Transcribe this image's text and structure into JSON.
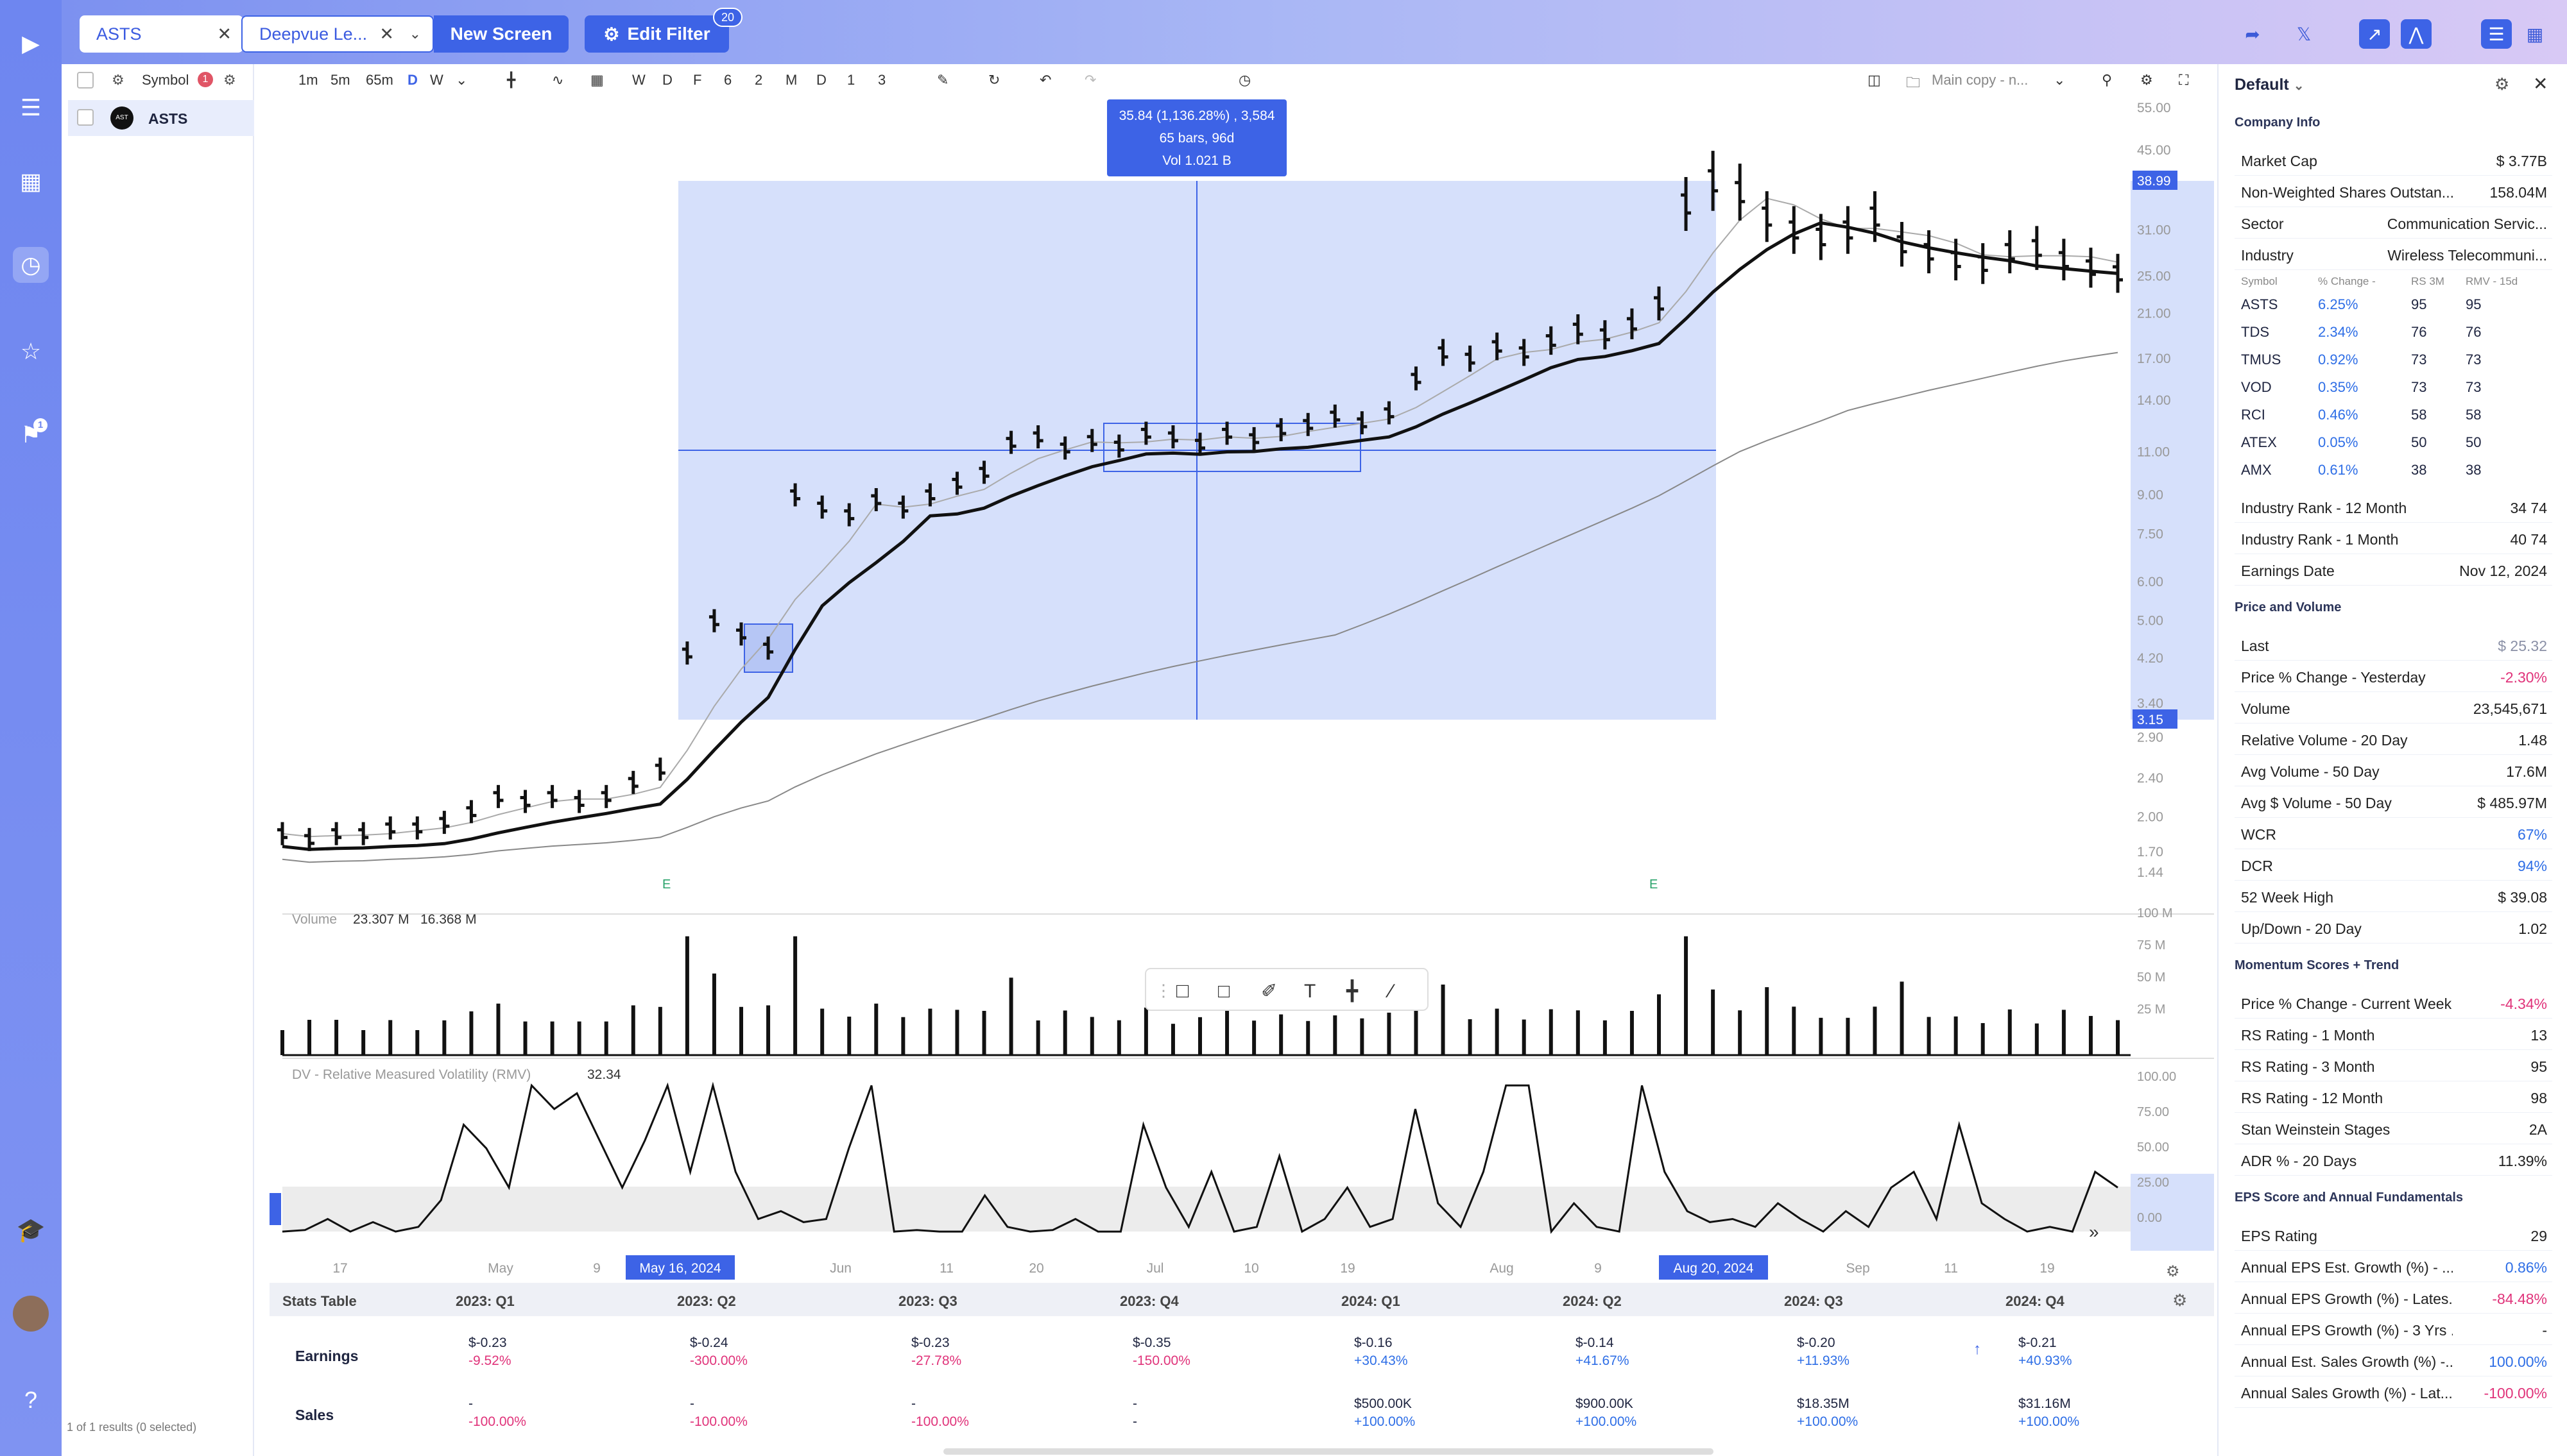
{
  "tabs": [
    {
      "label": "ASTS"
    },
    {
      "label": "Deepvue Le..."
    }
  ],
  "buttons": {
    "new_screen": "New Screen",
    "edit_filter": "Edit Filter",
    "filter_count": "20"
  },
  "rail_badge": "1",
  "watchlist": {
    "header": "Symbol",
    "header_badge": "1",
    "items": [
      {
        "symbol": "ASTS",
        "logo": "AST"
      }
    ],
    "footer": "1 of 1 results (0 selected)"
  },
  "chart_toolbar": {
    "timeframes": [
      "1m",
      "5m",
      "65m",
      "D",
      "W"
    ],
    "ranges": [
      "W",
      "D",
      "F",
      "6",
      "2",
      "M",
      "D",
      "1",
      "3"
    ],
    "layout_label": "Main copy - n..."
  },
  "chart_data": [
    {
      "type": "bar",
      "title": "ASTS",
      "x_axis_labels": [
        "17",
        "May",
        "9",
        "May 16, 2024",
        "Jun",
        "11",
        "20",
        "Jul",
        "10",
        "19",
        "Aug",
        "9",
        "Aug 20, 2024",
        "Sep",
        "11",
        "19"
      ],
      "price_axis": [
        "55.00",
        "45.00",
        "38.99",
        "31.00",
        "25.00",
        "21.00",
        "17.00",
        "14.00",
        "11.00",
        "9.00",
        "7.50",
        "6.00",
        "5.00",
        "4.20",
        "3.40",
        "3.15",
        "2.90",
        "2.40",
        "2.00",
        "1.70",
        "1.44"
      ],
      "highlight_high": "38.99",
      "highlight_low": "3.15",
      "measure_box": {
        "line1": "35.84 (1,136.28%) , 3,584",
        "line2": "65 bars, 96d",
        "line3": "Vol 1.021 B"
      },
      "earnings_markers": [
        "E",
        "E"
      ],
      "price_path": [
        1.85,
        1.8,
        1.85,
        1.85,
        1.9,
        1.9,
        1.95,
        2.05,
        2.2,
        2.15,
        2.2,
        2.15,
        2.2,
        2.35,
        2.5,
        4.3,
        5.0,
        4.7,
        4.4,
        9.0,
        8.5,
        8.2,
        8.8,
        8.5,
        9.0,
        9.5,
        10.0,
        11.5,
        11.8,
        11.2,
        11.6,
        11.3,
        12.0,
        11.8,
        11.4,
        12.0,
        11.7,
        12.2,
        12.5,
        13.0,
        12.6,
        13.2,
        15.5,
        17.5,
        17.0,
        18.0,
        17.5,
        18.5,
        19.5,
        19.0,
        20.0,
        22.0,
        35.0,
        39.0,
        37.0,
        33.0,
        31.0,
        30.0,
        31.0,
        33.0,
        29.0,
        28.0,
        27.0,
        26.5,
        28.0,
        28.5,
        27.0,
        26.0,
        25.32
      ]
    },
    {
      "type": "bar",
      "title": "Volume",
      "legend_values": [
        "23.307 M",
        "16.368 M"
      ],
      "axis": [
        "100 M",
        "75 M",
        "50 M",
        "25 M"
      ]
    },
    {
      "type": "line",
      "title": "DV - Relative Measured Volatility (RMV)",
      "legend_value": "32.34",
      "axis": [
        "100.00",
        "75.00",
        "50.00",
        "25.00",
        "0.00"
      ],
      "values": [
        2,
        3,
        10,
        2,
        8,
        2,
        5,
        22,
        70,
        55,
        30,
        95,
        80,
        90,
        60,
        30,
        60,
        95,
        40,
        95,
        40,
        10,
        15,
        8,
        10,
        55,
        95,
        2,
        3,
        2,
        2,
        25,
        5,
        2,
        3,
        10,
        2,
        2,
        70,
        30,
        5,
        40,
        2,
        5,
        50,
        2,
        10,
        30,
        5,
        10,
        80,
        20,
        5,
        40,
        95,
        95,
        2,
        20,
        5,
        2,
        95,
        40,
        15,
        8,
        10,
        5,
        20,
        10,
        2,
        15,
        5,
        30,
        40,
        10,
        70,
        20,
        10,
        2,
        5,
        2,
        40,
        30
      ]
    }
  ],
  "stats_table": {
    "title": "Stats Table",
    "columns": [
      "2023: Q1",
      "2023: Q2",
      "2023: Q3",
      "2023: Q4",
      "2024: Q1",
      "2024: Q2",
      "2024: Q3",
      "2024: Q4"
    ],
    "earnings": {
      "label": "Earnings",
      "eps": [
        "$-0.23",
        "$-0.24",
        "$-0.23",
        "$-0.35",
        "$-0.16",
        "$-0.14",
        "$-0.20",
        "$-0.21"
      ],
      "growth": [
        "-9.52%",
        "-300.00%",
        "-27.78%",
        "-150.00%",
        "+30.43%",
        "+41.67%",
        "+11.93%",
        "+40.93%"
      ]
    },
    "sales": {
      "label": "Sales",
      "values": [
        "-",
        "-",
        "-",
        "-",
        "$500.00K",
        "$900.00K",
        "$18.35M",
        "$31.16M"
      ],
      "growth": [
        "-100.00%",
        "-100.00%",
        "-100.00%",
        "-",
        "+100.00%",
        "+100.00%",
        "+100.00%",
        "+100.00%"
      ]
    }
  },
  "right_panel": {
    "layout": "Default",
    "company_info": {
      "title": "Company Info",
      "market_cap": {
        "label": "Market Cap",
        "value": "$ 3.77B"
      },
      "shares": {
        "label": "Non-Weighted Shares Outstan...",
        "value": "158.04M"
      },
      "sector": {
        "label": "Sector",
        "value": "Communication Servic..."
      },
      "industry": {
        "label": "Industry",
        "value": "Wireless Telecommuni..."
      },
      "peer_headers": [
        "Symbol",
        "% Change -",
        "RS 3M",
        "RMV - 15d"
      ],
      "peers": [
        {
          "symbol": "ASTS",
          "change": "6.25%",
          "rs": "95",
          "rmv": "95"
        },
        {
          "symbol": "TDS",
          "change": "2.34%",
          "rs": "76",
          "rmv": "76"
        },
        {
          "symbol": "TMUS",
          "change": "0.92%",
          "rs": "73",
          "rmv": "73"
        },
        {
          "symbol": "VOD",
          "change": "0.35%",
          "rs": "73",
          "rmv": "73"
        },
        {
          "symbol": "RCI",
          "change": "0.46%",
          "rs": "58",
          "rmv": "58"
        },
        {
          "symbol": "ATEX",
          "change": "0.05%",
          "rs": "50",
          "rmv": "50"
        },
        {
          "symbol": "AMX",
          "change": "0.61%",
          "rs": "38",
          "rmv": "38"
        }
      ],
      "rank_12m": {
        "label": "Industry Rank - 12 Month",
        "value": "34",
        "of": "74"
      },
      "rank_1m": {
        "label": "Industry Rank - 1 Month",
        "value": "40",
        "of": "74"
      },
      "earnings_date": {
        "label": "Earnings Date",
        "value": "Nov 12, 2024"
      }
    },
    "price_volume": {
      "title": "Price and Volume",
      "rows": [
        {
          "label": "Last",
          "value": "$ 25.32",
          "cls": "gray"
        },
        {
          "label": "Price % Change - Yesterday",
          "value": "-2.30%",
          "cls": "neg"
        },
        {
          "label": "Volume",
          "value": "23,545,671",
          "cls": ""
        },
        {
          "label": "Relative Volume - 20 Day",
          "value": "1.48",
          "cls": ""
        },
        {
          "label": "Avg Volume - 50 Day",
          "value": "17.6M",
          "cls": ""
        },
        {
          "label": "Avg $ Volume - 50 Day",
          "value": "$ 485.97M",
          "cls": ""
        },
        {
          "label": "WCR",
          "value": "67%",
          "cls": "pos"
        },
        {
          "label": "DCR",
          "value": "94%",
          "cls": "pos"
        },
        {
          "label": "52 Week High",
          "value": "$ 39.08",
          "cls": ""
        },
        {
          "label": "Up/Down - 20 Day",
          "value": "1.02",
          "cls": ""
        }
      ]
    },
    "momentum": {
      "title": "Momentum Scores + Trend",
      "rows": [
        {
          "label": "Price % Change - Current Week",
          "value": "-4.34%",
          "cls": "neg"
        },
        {
          "label": "RS Rating - 1 Month",
          "value": "13",
          "cls": ""
        },
        {
          "label": "RS Rating - 3 Month",
          "value": "95",
          "cls": ""
        },
        {
          "label": "RS Rating - 12 Month",
          "value": "98",
          "cls": ""
        },
        {
          "label": "Stan Weinstein Stages",
          "value": "2A",
          "cls": ""
        },
        {
          "label": "ADR % - 20 Days",
          "value": "11.39%",
          "cls": ""
        }
      ]
    },
    "eps": {
      "title": "EPS Score and Annual Fundamentals",
      "rows": [
        {
          "label": "EPS Rating",
          "value": "29",
          "cls": ""
        },
        {
          "label": "Annual EPS Est. Growth (%) - ...",
          "value": "0.86%",
          "cls": "pos"
        },
        {
          "label": "Annual EPS Growth (%) - Lates...",
          "value": "-84.48%",
          "cls": "neg"
        },
        {
          "label": "Annual EPS Growth (%) - 3 Yrs ...",
          "value": "-",
          "cls": ""
        },
        {
          "label": "Annual Est. Sales Growth (%) -...",
          "value": "100.00%",
          "cls": "pos"
        },
        {
          "label": "Annual Sales Growth (%) - Lat...",
          "value": "-100.00%",
          "cls": "neg"
        }
      ]
    }
  }
}
